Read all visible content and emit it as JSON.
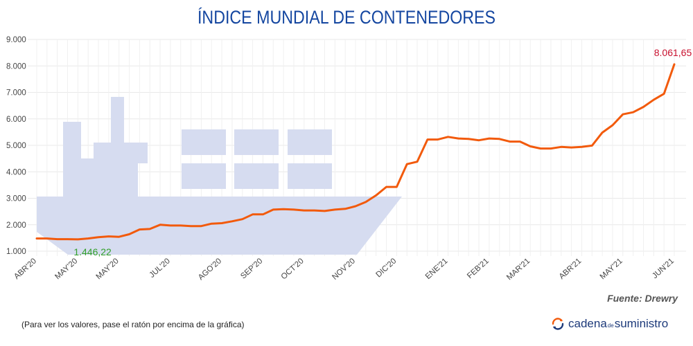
{
  "header": {
    "title": "ÍNDICE MUNDIAL DE CONTENEDORES"
  },
  "source": "Fuente: Drewry",
  "footnote": "(Para ver los valores, pase el ratón por encima de la gráfica)",
  "brand": {
    "part1": "cadena",
    "part2": "de",
    "part3": "suministro"
  },
  "colors": {
    "title": "#1446a0",
    "line": "#f25a0c",
    "ship": "#d6dcf0",
    "min_label": "#32a02a",
    "max_label": "#c8102e",
    "brand": "#1d3a7a"
  },
  "chart_data": {
    "type": "line",
    "title": "ÍNDICE MUNDIAL DE CONTENEDORES",
    "xlabel": "",
    "ylabel": "",
    "ylim": [
      1000,
      9000
    ],
    "y_ticks": [
      1000,
      2000,
      3000,
      4000,
      5000,
      6000,
      7000,
      8000,
      9000
    ],
    "y_tick_labels": [
      "1.000",
      "2.000",
      "3.000",
      "4.000",
      "5.000",
      "6.000",
      "7.000",
      "8.000",
      "9.000"
    ],
    "x_tick_labels": [
      {
        "label": "ABR'20",
        "index": 0
      },
      {
        "label": "MAY'20",
        "index": 4
      },
      {
        "label": "MAY'20",
        "index": 8
      },
      {
        "label": "JUL'20",
        "index": 13
      },
      {
        "label": "AGO'20",
        "index": 18
      },
      {
        "label": "SEP'20",
        "index": 22
      },
      {
        "label": "OCT'20",
        "index": 26
      },
      {
        "label": "NOV'20",
        "index": 31
      },
      {
        "label": "DIC'20",
        "index": 35
      },
      {
        "label": "ENE'21",
        "index": 40
      },
      {
        "label": "FEB'21",
        "index": 44
      },
      {
        "label": "MAR'21",
        "index": 48
      },
      {
        "label": "ABR'21",
        "index": 53
      },
      {
        "label": "MAY'21",
        "index": 57
      },
      {
        "label": "JUN'21",
        "index": 62
      }
    ],
    "grid": true,
    "series": [
      {
        "name": "Índice Mundial de Contenedores",
        "values": [
          1480,
          1480,
          1455,
          1455,
          1446.22,
          1480,
          1530,
          1560,
          1545,
          1640,
          1820,
          1840,
          2000,
          1970,
          1970,
          1950,
          1950,
          2040,
          2060,
          2130,
          2210,
          2390,
          2390,
          2570,
          2590,
          2570,
          2540,
          2540,
          2520,
          2570,
          2600,
          2700,
          2860,
          3110,
          3430,
          3430,
          4290,
          4380,
          5220,
          5220,
          5320,
          5260,
          5240,
          5190,
          5260,
          5240,
          5140,
          5140,
          4960,
          4880,
          4880,
          4940,
          4920,
          4940,
          4990,
          5480,
          5760,
          6170,
          6250,
          6450,
          6720,
          6950,
          8061.65
        ]
      }
    ],
    "annotations": [
      {
        "text": "1.446,22",
        "index": 4,
        "value": 1446.22,
        "kind": "min"
      },
      {
        "text": "8.061,65",
        "index": 62,
        "value": 8061.65,
        "kind": "max"
      }
    ]
  }
}
